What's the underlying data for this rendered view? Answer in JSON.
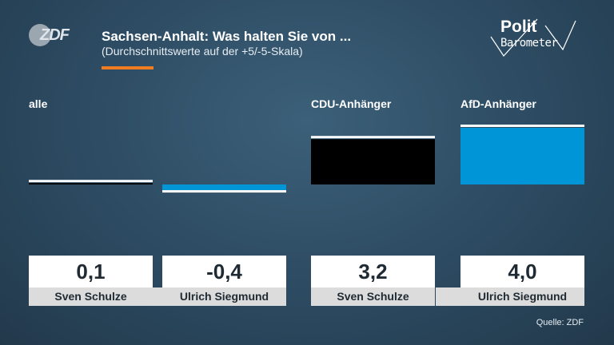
{
  "header": {
    "logo_text": "ZDF",
    "title": "Sachsen-Anhalt: Was halten Sie von ...",
    "subtitle": "(Durchschnittswerte auf der +5/-5-Skala)",
    "accent_color": "#f07c22",
    "brand_top": "Polit",
    "brand_bottom": "Barometer"
  },
  "chart_data": {
    "type": "bar",
    "ylim": [
      -5,
      5
    ],
    "groups": [
      {
        "label": "alle",
        "bars": [
          0,
          1
        ]
      },
      {
        "label": "CDU-Anhänger",
        "bars": [
          2
        ]
      },
      {
        "label": "AfD-Anhänger",
        "bars": [
          3
        ]
      }
    ],
    "categories": [
      "Sven Schulze",
      "Ulrich Siegmund",
      "Sven Schulze",
      "Ulrich Siegmund"
    ],
    "values": [
      0.1,
      -0.4,
      3.2,
      4.0
    ],
    "value_labels": [
      "0,1",
      "-0,4",
      "3,2",
      "4,0"
    ],
    "colors": [
      "#000000",
      "#0095d6",
      "#000000",
      "#0095d6"
    ]
  },
  "source": "Quelle: ZDF"
}
